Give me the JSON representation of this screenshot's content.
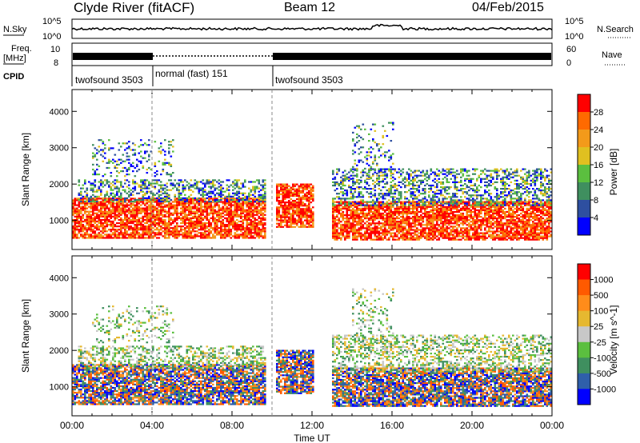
{
  "header": {
    "station": "Clyde River (fitACF)",
    "beam": "Beam 12",
    "date": "04/Feb/2015"
  },
  "status_panel": {
    "nsky_label": "N.Sky",
    "nsky_ticks": [
      "10^5",
      "10^0"
    ],
    "nsearch_label": "N.Search",
    "nsearch_ticks": [
      "10^5",
      "10^0"
    ],
    "freq_label": "Freq.",
    "freq_unit": "[MHz]",
    "freq_ticks": [
      "10",
      "8"
    ],
    "nave_label": "Nave",
    "nave_ticks": [
      "60",
      "0"
    ],
    "cpid_label": "CPID",
    "cpid_segments": [
      {
        "name": "twofsound 3503",
        "start_h": 0,
        "end_h": 4
      },
      {
        "name": "normal (fast) 151",
        "start_h": 4,
        "end_h": 10
      },
      {
        "name": "twofsound 3503",
        "start_h": 10,
        "end_h": 24
      }
    ]
  },
  "colors": {
    "power_scale": [
      "#0000ff",
      "#2e4fa0",
      "#3f8f5f",
      "#5bbf3f",
      "#e0c020",
      "#f39a1a",
      "#ff6a00",
      "#ff0000"
    ],
    "velocity_scale": [
      "#0000ff",
      "#2f5faa",
      "#3f8f5f",
      "#5bbf3f",
      "#c8c8c8",
      "#e6b830",
      "#ff8c1a",
      "#ff5a00",
      "#ff0000"
    ]
  },
  "chart_data": [
    {
      "type": "heatmap",
      "name": "power",
      "ylabel": "Slant Range [km]",
      "yticks": [
        "1000",
        "2000",
        "3000",
        "4000"
      ],
      "ylim": [
        200,
        4600
      ],
      "colorbar_label": "Power [dB]",
      "colorbar_ticks": [
        "4",
        "8",
        "12",
        "16",
        "20",
        "24",
        "28"
      ],
      "zlim": [
        0,
        30
      ],
      "xlim": [
        0,
        24
      ]
    },
    {
      "type": "heatmap",
      "name": "velocity",
      "ylabel": "Slant Range [km]",
      "yticks": [
        "1000",
        "2000",
        "3000",
        "4000"
      ],
      "ylim": [
        200,
        4600
      ],
      "colorbar_label": "Velocity [m s^-1]",
      "colorbar_ticks": [
        "1000",
        "500",
        "100",
        "25",
        "-25",
        "-100",
        "-500",
        "-1000"
      ],
      "xlim": [
        0,
        24
      ]
    }
  ],
  "xaxis": {
    "label": "Time UT",
    "ticks": [
      "00:00",
      "04:00",
      "08:00",
      "12:00",
      "16:00",
      "20:00",
      "00:00"
    ]
  }
}
